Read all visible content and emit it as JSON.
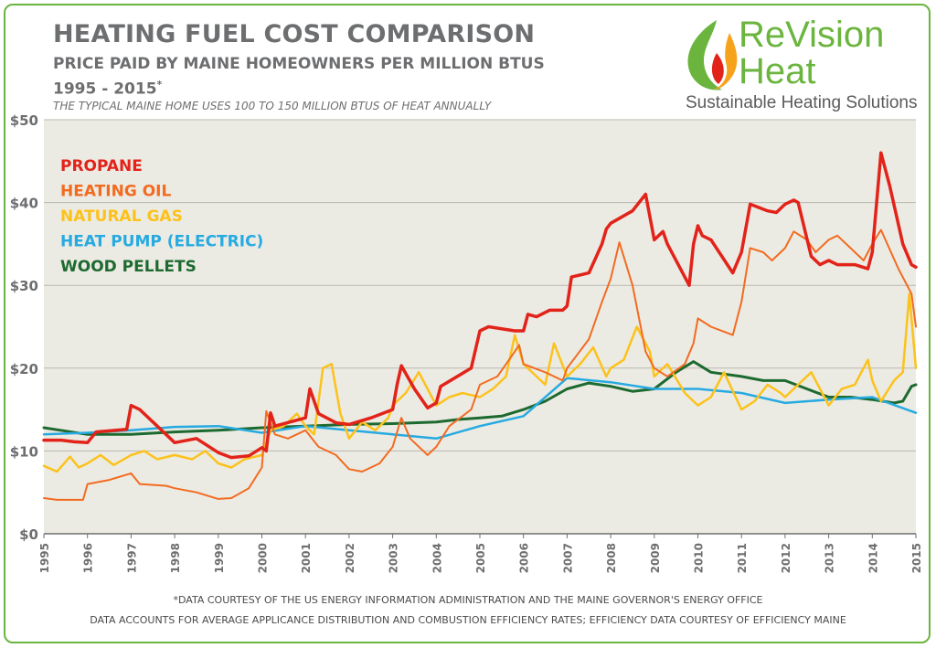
{
  "header": {
    "title": "HEATING FUEL COST COMPARISON",
    "subtitle": "PRICE PAID BY MAINE HOMEOWNERS PER MILLION BTUS",
    "years": "1995 - 2015",
    "years_mark": "*",
    "note": "THE TYPICAL MAINE HOME USES 100 TO 150 MILLION BTUS OF HEAT ANNUALLY"
  },
  "logo": {
    "brand_line1": "ReVision",
    "brand_line2": "Heat",
    "tagline": "Sustainable Heating Solutions",
    "brand_color": "#6bb53f",
    "flame_color": "#f7a21b",
    "flame_inner_color": "#e2231a"
  },
  "footer": {
    "line1": "*DATA COURTESY OF THE US ENERGY INFORMATION ADMINISTRATION AND THE MAINE GOVERNOR'S ENERGY OFFICE",
    "line2": "DATA ACCOUNTS FOR AVERAGE APPLICANCE DISTRIBUTION AND COMBUSTION EFFICIENCY RATES; EFFICIENCY DATA COURTESY OF EFFICIENCY MAINE"
  },
  "chart_data": {
    "type": "line",
    "title": "",
    "xlabel": "",
    "ylabel": "",
    "xlim": [
      1995,
      2015
    ],
    "ylim": [
      0,
      50
    ],
    "grid": true,
    "legend": "top-left",
    "background": "#ecebe3",
    "x_ticks": [
      "1995",
      "1996",
      "1997",
      "1998",
      "1999",
      "2000",
      "2001",
      "2002",
      "2003",
      "2004",
      "2005",
      "2006",
      "2007",
      "2008",
      "2009",
      "2010",
      "2011",
      "2012",
      "2013",
      "2014",
      "2015"
    ],
    "y_ticks": [
      {
        "value": 0,
        "label": "$0"
      },
      {
        "value": 10,
        "label": "$10"
      },
      {
        "value": 20,
        "label": "$20"
      },
      {
        "value": 30,
        "label": "$30"
      },
      {
        "value": 40,
        "label": "$40"
      },
      {
        "value": 50,
        "label": "$50"
      }
    ],
    "series": [
      {
        "name": "PROPANE",
        "color": "#e2231a",
        "width": 3.5,
        "points": [
          [
            1995,
            11.3
          ],
          [
            1995.4,
            11.3
          ],
          [
            1995.7,
            11.1
          ],
          [
            1996,
            11.0
          ],
          [
            1996.2,
            12.3
          ],
          [
            1996.9,
            12.6
          ],
          [
            1997,
            15.5
          ],
          [
            1997.2,
            15.0
          ],
          [
            1997.6,
            13.0
          ],
          [
            1998,
            11.0
          ],
          [
            1998.5,
            11.5
          ],
          [
            1999,
            9.8
          ],
          [
            1999.3,
            9.2
          ],
          [
            1999.7,
            9.4
          ],
          [
            2000,
            10.4
          ],
          [
            2000.1,
            10.0
          ],
          [
            2000.2,
            14.6
          ],
          [
            2000.3,
            13.0
          ],
          [
            2001,
            14.0
          ],
          [
            2001.1,
            17.5
          ],
          [
            2001.3,
            14.5
          ],
          [
            2001.7,
            13.4
          ],
          [
            2002,
            13.2
          ],
          [
            2002.5,
            14.0
          ],
          [
            2003,
            15.0
          ],
          [
            2003.1,
            18.0
          ],
          [
            2003.2,
            20.3
          ],
          [
            2003.5,
            17.5
          ],
          [
            2003.8,
            15.2
          ],
          [
            2004,
            15.8
          ],
          [
            2004.1,
            17.8
          ],
          [
            2004.8,
            20.0
          ],
          [
            2005,
            24.5
          ],
          [
            2005.2,
            25.0
          ],
          [
            2005.8,
            24.5
          ],
          [
            2006,
            24.5
          ],
          [
            2006.1,
            26.5
          ],
          [
            2006.3,
            26.2
          ],
          [
            2006.6,
            27.0
          ],
          [
            2006.9,
            27.0
          ],
          [
            2007,
            27.5
          ],
          [
            2007.1,
            31.0
          ],
          [
            2007.5,
            31.5
          ],
          [
            2007.8,
            35.0
          ],
          [
            2007.9,
            36.8
          ],
          [
            2008,
            37.5
          ],
          [
            2008.5,
            39.0
          ],
          [
            2008.8,
            41.0
          ],
          [
            2009,
            35.5
          ],
          [
            2009.2,
            36.5
          ],
          [
            2009.3,
            35.0
          ],
          [
            2009.8,
            30.0
          ],
          [
            2009.9,
            35.0
          ],
          [
            2010,
            37.2
          ],
          [
            2010.1,
            36.0
          ],
          [
            2010.3,
            35.5
          ],
          [
            2010.8,
            31.5
          ],
          [
            2011,
            34.0
          ],
          [
            2011.2,
            39.8
          ],
          [
            2011.6,
            39.0
          ],
          [
            2011.8,
            38.8
          ],
          [
            2012,
            39.8
          ],
          [
            2012.2,
            40.3
          ],
          [
            2012.3,
            40.0
          ],
          [
            2012.6,
            33.5
          ],
          [
            2012.8,
            32.5
          ],
          [
            2013,
            33.0
          ],
          [
            2013.2,
            32.5
          ],
          [
            2013.6,
            32.5
          ],
          [
            2013.9,
            32.0
          ],
          [
            2014,
            34.0
          ],
          [
            2014.2,
            46.0
          ],
          [
            2014.4,
            42.0
          ],
          [
            2014.7,
            35.0
          ],
          [
            2014.9,
            32.5
          ],
          [
            2015,
            32.2
          ]
        ]
      },
      {
        "name": "HEATING OIL",
        "color": "#f26b21",
        "width": 2,
        "points": [
          [
            1995,
            4.3
          ],
          [
            1995.3,
            4.1
          ],
          [
            1995.9,
            4.1
          ],
          [
            1996,
            6.0
          ],
          [
            1996.5,
            6.5
          ],
          [
            1997,
            7.3
          ],
          [
            1997.2,
            6.0
          ],
          [
            1997.8,
            5.8
          ],
          [
            1998,
            5.5
          ],
          [
            1998.5,
            5.0
          ],
          [
            1999,
            4.2
          ],
          [
            1999.3,
            4.3
          ],
          [
            1999.7,
            5.5
          ],
          [
            2000,
            8.0
          ],
          [
            2000.1,
            14.8
          ],
          [
            2000.3,
            12.0
          ],
          [
            2000.6,
            11.5
          ],
          [
            2001,
            12.5
          ],
          [
            2001.3,
            10.5
          ],
          [
            2001.7,
            9.5
          ],
          [
            2002,
            7.8
          ],
          [
            2002.3,
            7.5
          ],
          [
            2002.7,
            8.5
          ],
          [
            2003,
            10.5
          ],
          [
            2003.2,
            14.0
          ],
          [
            2003.4,
            11.5
          ],
          [
            2003.8,
            9.5
          ],
          [
            2004,
            10.5
          ],
          [
            2004.3,
            13.0
          ],
          [
            2004.8,
            15.0
          ],
          [
            2005,
            18.0
          ],
          [
            2005.4,
            19.0
          ],
          [
            2005.8,
            22.0
          ],
          [
            2005.9,
            22.8
          ],
          [
            2006,
            20.5
          ],
          [
            2006.5,
            19.5
          ],
          [
            2006.9,
            18.5
          ],
          [
            2007,
            20.0
          ],
          [
            2007.5,
            23.5
          ],
          [
            2007.8,
            28.0
          ],
          [
            2008,
            30.8
          ],
          [
            2008.2,
            35.2
          ],
          [
            2008.5,
            30.0
          ],
          [
            2008.8,
            22.0
          ],
          [
            2009,
            20.0
          ],
          [
            2009.3,
            19.0
          ],
          [
            2009.7,
            20.5
          ],
          [
            2009.9,
            23.0
          ],
          [
            2010,
            26.0
          ],
          [
            2010.3,
            25.0
          ],
          [
            2010.8,
            24.0
          ],
          [
            2011,
            28.0
          ],
          [
            2011.2,
            34.5
          ],
          [
            2011.5,
            34.0
          ],
          [
            2011.7,
            33.0
          ],
          [
            2012,
            34.5
          ],
          [
            2012.2,
            36.5
          ],
          [
            2012.5,
            35.5
          ],
          [
            2012.7,
            34.0
          ],
          [
            2013,
            35.5
          ],
          [
            2013.2,
            36.0
          ],
          [
            2013.5,
            34.5
          ],
          [
            2013.8,
            33.0
          ],
          [
            2014,
            35.0
          ],
          [
            2014.2,
            36.7
          ],
          [
            2014.6,
            32.0
          ],
          [
            2014.9,
            29.0
          ],
          [
            2015,
            25.0
          ]
        ]
      },
      {
        "name": "NATURAL GAS",
        "color": "#fcc21b",
        "width": 2.5,
        "points": [
          [
            1995,
            8.2
          ],
          [
            1995.3,
            7.5
          ],
          [
            1995.6,
            9.3
          ],
          [
            1995.8,
            8.0
          ],
          [
            1996,
            8.5
          ],
          [
            1996.3,
            9.5
          ],
          [
            1996.6,
            8.3
          ],
          [
            1997,
            9.5
          ],
          [
            1997.3,
            10.0
          ],
          [
            1997.6,
            9.0
          ],
          [
            1998,
            9.5
          ],
          [
            1998.4,
            9.0
          ],
          [
            1998.7,
            10.0
          ],
          [
            1999,
            8.5
          ],
          [
            1999.3,
            8.0
          ],
          [
            1999.6,
            9.0
          ],
          [
            2000,
            9.5
          ],
          [
            2000.2,
            12.5
          ],
          [
            2000.5,
            13.0
          ],
          [
            2000.8,
            14.5
          ],
          [
            2001,
            13.0
          ],
          [
            2001.2,
            12.0
          ],
          [
            2001.4,
            20.0
          ],
          [
            2001.6,
            20.5
          ],
          [
            2001.8,
            14.5
          ],
          [
            2002,
            11.5
          ],
          [
            2002.3,
            13.5
          ],
          [
            2002.6,
            12.5
          ],
          [
            2002.9,
            14.0
          ],
          [
            2003,
            15.5
          ],
          [
            2003.3,
            17.0
          ],
          [
            2003.6,
            19.5
          ],
          [
            2003.9,
            16.5
          ],
          [
            2004,
            15.5
          ],
          [
            2004.3,
            16.5
          ],
          [
            2004.6,
            17.0
          ],
          [
            2005,
            16.5
          ],
          [
            2005.3,
            17.5
          ],
          [
            2005.6,
            19.0
          ],
          [
            2005.8,
            24.0
          ],
          [
            2006,
            20.5
          ],
          [
            2006.3,
            19.0
          ],
          [
            2006.5,
            18.0
          ],
          [
            2006.7,
            23.0
          ],
          [
            2007,
            19.0
          ],
          [
            2007.3,
            20.5
          ],
          [
            2007.6,
            22.5
          ],
          [
            2007.9,
            19.0
          ],
          [
            2008,
            20.0
          ],
          [
            2008.3,
            21.0
          ],
          [
            2008.6,
            25.0
          ],
          [
            2008.9,
            22.0
          ],
          [
            2009,
            19.0
          ],
          [
            2009.3,
            20.5
          ],
          [
            2009.7,
            17.0
          ],
          [
            2010,
            15.5
          ],
          [
            2010.3,
            16.5
          ],
          [
            2010.6,
            19.5
          ],
          [
            2011,
            15.0
          ],
          [
            2011.3,
            16.0
          ],
          [
            2011.6,
            18.0
          ],
          [
            2011.9,
            17.0
          ],
          [
            2012,
            16.5
          ],
          [
            2012.3,
            18.0
          ],
          [
            2012.6,
            19.5
          ],
          [
            2012.9,
            16.5
          ],
          [
            2013,
            15.5
          ],
          [
            2013.3,
            17.5
          ],
          [
            2013.6,
            18.0
          ],
          [
            2013.9,
            21.0
          ],
          [
            2014,
            18.5
          ],
          [
            2014.2,
            16.0
          ],
          [
            2014.5,
            18.5
          ],
          [
            2014.7,
            19.5
          ],
          [
            2014.85,
            29.0
          ],
          [
            2015,
            20.0
          ]
        ]
      },
      {
        "name": "HEAT PUMP (ELECTRIC)",
        "color": "#27aae1",
        "width": 2.5,
        "points": [
          [
            1995,
            12.0
          ],
          [
            1996,
            12.2
          ],
          [
            1997,
            12.5
          ],
          [
            1998,
            12.9
          ],
          [
            1999,
            13.0
          ],
          [
            2000,
            12.2
          ],
          [
            2001,
            13.0
          ],
          [
            2002,
            12.5
          ],
          [
            2003,
            12.0
          ],
          [
            2004,
            11.5
          ],
          [
            2005,
            13.0
          ],
          [
            2006,
            14.2
          ],
          [
            2007,
            18.8
          ],
          [
            2008,
            18.3
          ],
          [
            2009,
            17.5
          ],
          [
            2010,
            17.5
          ],
          [
            2011,
            17.0
          ],
          [
            2012,
            15.8
          ],
          [
            2013,
            16.2
          ],
          [
            2014,
            16.5
          ],
          [
            2015,
            14.6
          ]
        ]
      },
      {
        "name": "WOOD PELLETS",
        "color": "#1d6a30",
        "width": 3,
        "points": [
          [
            1995,
            12.8
          ],
          [
            1996,
            12.0
          ],
          [
            1997,
            12.0
          ],
          [
            1998,
            12.3
          ],
          [
            1999,
            12.5
          ],
          [
            2000,
            12.8
          ],
          [
            2001,
            13.0
          ],
          [
            2002,
            13.2
          ],
          [
            2003,
            13.3
          ],
          [
            2004,
            13.5
          ],
          [
            2004.5,
            13.8
          ],
          [
            2005,
            14.0
          ],
          [
            2005.5,
            14.2
          ],
          [
            2006,
            15.0
          ],
          [
            2006.5,
            16.0
          ],
          [
            2007,
            17.5
          ],
          [
            2007.5,
            18.2
          ],
          [
            2008,
            17.8
          ],
          [
            2008.5,
            17.2
          ],
          [
            2009,
            17.5
          ],
          [
            2009.5,
            19.5
          ],
          [
            2009.9,
            20.8
          ],
          [
            2010.3,
            19.5
          ],
          [
            2011,
            19.0
          ],
          [
            2011.5,
            18.5
          ],
          [
            2012,
            18.5
          ],
          [
            2012.5,
            17.5
          ],
          [
            2013,
            16.5
          ],
          [
            2013.5,
            16.5
          ],
          [
            2014,
            16.2
          ],
          [
            2014.5,
            15.8
          ],
          [
            2014.7,
            16.0
          ],
          [
            2014.9,
            17.8
          ],
          [
            2015,
            18.0
          ]
        ]
      }
    ]
  }
}
